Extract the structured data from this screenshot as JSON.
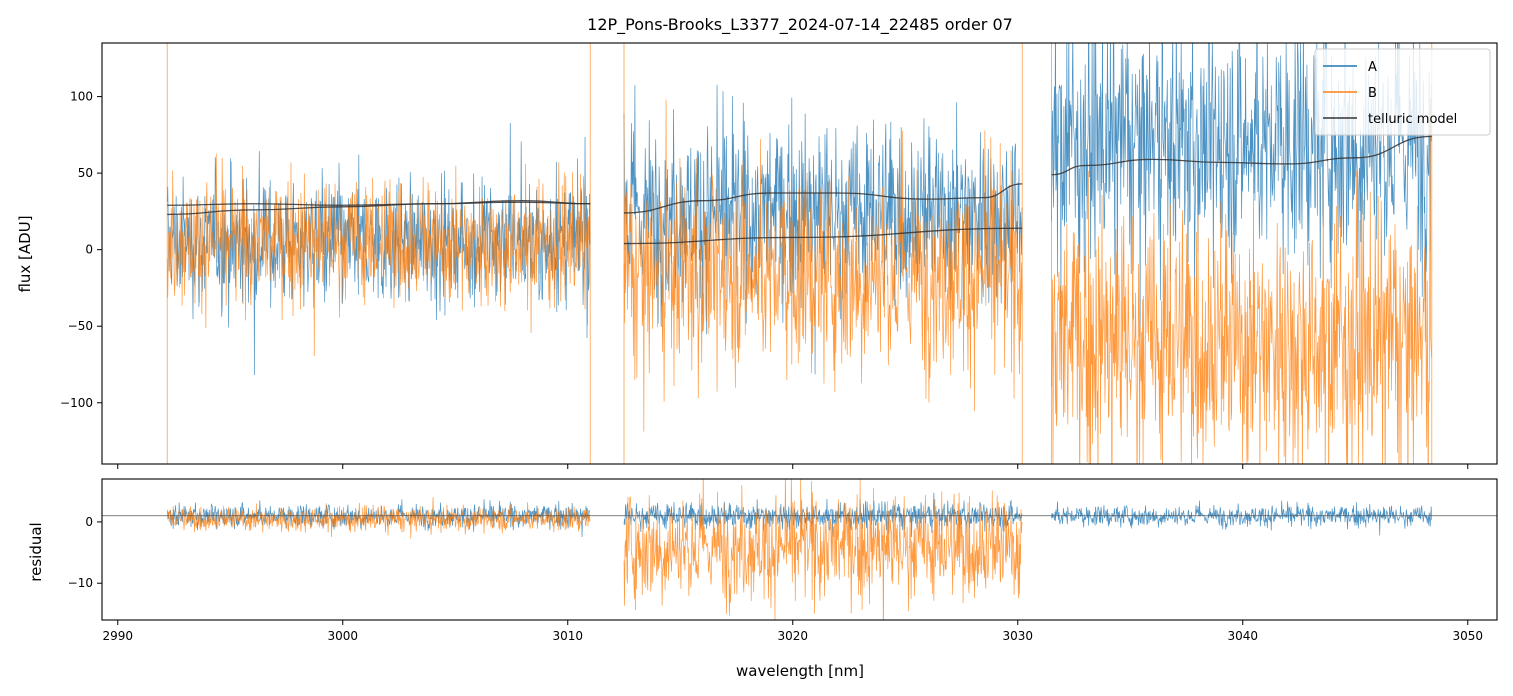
{
  "chart_data": {
    "type": "line",
    "title": "12P_Pons-Brooks_L3377_2024-07-14_22485  order 07",
    "xlabel": "wavelength [nm]",
    "xlim": [
      2989.3,
      3051.3
    ],
    "xticks": [
      2990,
      3000,
      3010,
      3020,
      3030,
      3040,
      3050
    ],
    "xtick_labels": [
      "2990",
      "3000",
      "3010",
      "3020",
      "3030",
      "3040",
      "3050"
    ],
    "colors": {
      "A": "#1f77b4",
      "B": "#ff7f0e",
      "model": "#333333"
    },
    "legend": [
      "A",
      "B",
      "telluric model"
    ],
    "legend_position": "top-right",
    "segments": [
      {
        "x0": 2992.2,
        "x1": 3011.0
      },
      {
        "x0": 3012.5,
        "x1": 3030.2
      },
      {
        "x0": 3031.5,
        "x1": 3048.4
      }
    ],
    "top_panel": {
      "ylabel": "flux [ADU]",
      "ylim": [
        -140,
        135
      ],
      "yticks": [
        100,
        50,
        0,
        -50,
        -100
      ],
      "ytick_labels": [
        "100",
        "50",
        "0",
        "−50",
        "−100"
      ],
      "series_stats": {
        "A": [
          {
            "segment": 0,
            "mean": 5,
            "spread": 28
          },
          {
            "segment": 1,
            "mean": 25,
            "spread": 40
          },
          {
            "segment": 2,
            "mean": 70,
            "spread": 55
          }
        ],
        "B": [
          {
            "segment": 0,
            "mean": 5,
            "spread": 28
          },
          {
            "segment": 1,
            "mean": -15,
            "spread": 45
          },
          {
            "segment": 2,
            "mean": -60,
            "spread": 60
          }
        ]
      },
      "model_curves": [
        {
          "name": "A",
          "segment": 0,
          "x": [
            2992.2,
            2996,
            3000,
            3004,
            3008,
            3011
          ],
          "y": [
            23,
            26,
            28,
            30,
            32,
            30
          ]
        },
        {
          "name": "B",
          "segment": 0,
          "x": [
            2992.2,
            2996,
            3000,
            3004,
            3008,
            3011
          ],
          "y": [
            29,
            30,
            29,
            30,
            31,
            30
          ]
        },
        {
          "name": "A",
          "segment": 1,
          "x": [
            3012.5,
            3016,
            3019,
            3022,
            3026,
            3028.5,
            3030.2
          ],
          "y": [
            24,
            32,
            37,
            37,
            33,
            34,
            43
          ]
        },
        {
          "name": "B",
          "segment": 1,
          "x": [
            3012.5,
            3020,
            3030.2
          ],
          "y": [
            4,
            8,
            14
          ]
        },
        {
          "name": "A",
          "segment": 2,
          "x": [
            3031.5,
            3033,
            3036,
            3039,
            3042,
            3045,
            3048.4
          ],
          "y": [
            49,
            55,
            59,
            57,
            56,
            60,
            74
          ]
        }
      ]
    },
    "bottom_panel": {
      "ylabel": "residual",
      "ylim": [
        -16,
        7
      ],
      "yticks": [
        0,
        -10
      ],
      "ytick_labels": [
        "0",
        "−10"
      ],
      "zero_line": 1,
      "series_stats": {
        "A": [
          {
            "segment": 0,
            "mean": 1,
            "spread": 1.3
          },
          {
            "segment": 1,
            "mean": 1,
            "spread": 1.5
          },
          {
            "segment": 2,
            "mean": 1,
            "spread": 1.2
          }
        ],
        "B": [
          {
            "segment": 0,
            "mean": 0.5,
            "spread": 1.4
          },
          {
            "segment": 1,
            "mean": -4,
            "spread": 6
          }
        ]
      }
    }
  }
}
